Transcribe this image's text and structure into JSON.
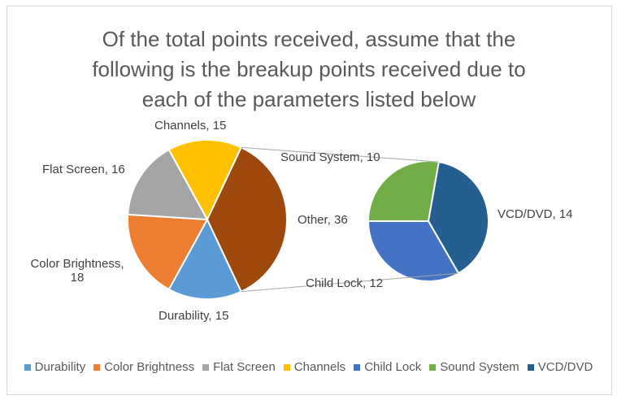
{
  "chart_data": {
    "type": "pie-of-pie",
    "title": "Of the total points received, assume that the following is the breakup points received due to each of the parameters listed below",
    "title_lines": [
      "Of the total points received, assume that the",
      "following is the breakup points received due to",
      "each of the parameters listed below"
    ],
    "primary": [
      {
        "name": "Durability",
        "value": 15,
        "label": "Durability, 15",
        "color": "#5B9BD5"
      },
      {
        "name": "Color Brightness",
        "value": 18,
        "label": "Color Brightness, 18",
        "color": "#ED7D31"
      },
      {
        "name": "Flat Screen",
        "value": 16,
        "label": "Flat Screen, 16",
        "color": "#A5A5A5"
      },
      {
        "name": "Channels",
        "value": 15,
        "label": "Channels, 15",
        "color": "#FFC000"
      },
      {
        "name": "Other",
        "value": 36,
        "label": "Other, 36",
        "color": "#9E480E"
      }
    ],
    "secondary": [
      {
        "name": "Sound System",
        "value": 10,
        "label": "Sound System, 10",
        "color": "#70AD47"
      },
      {
        "name": "VCD/DVD",
        "value": 14,
        "label": "VCD/DVD, 14",
        "color": "#255E91"
      },
      {
        "name": "Child Lock",
        "value": 12,
        "label": "Child Lock, 12",
        "color": "#4472C4"
      }
    ],
    "legend": [
      {
        "name": "Durability",
        "color": "#5B9BD5"
      },
      {
        "name": "Color Brightness",
        "color": "#ED7D31"
      },
      {
        "name": "Flat Screen",
        "color": "#A5A5A5"
      },
      {
        "name": "Channels",
        "color": "#FFC000"
      },
      {
        "name": "Child Lock",
        "color": "#4472C4"
      },
      {
        "name": "Sound System",
        "color": "#70AD47"
      },
      {
        "name": "VCD/DVD",
        "color": "#255E91"
      }
    ],
    "legend_position": "bottom"
  }
}
